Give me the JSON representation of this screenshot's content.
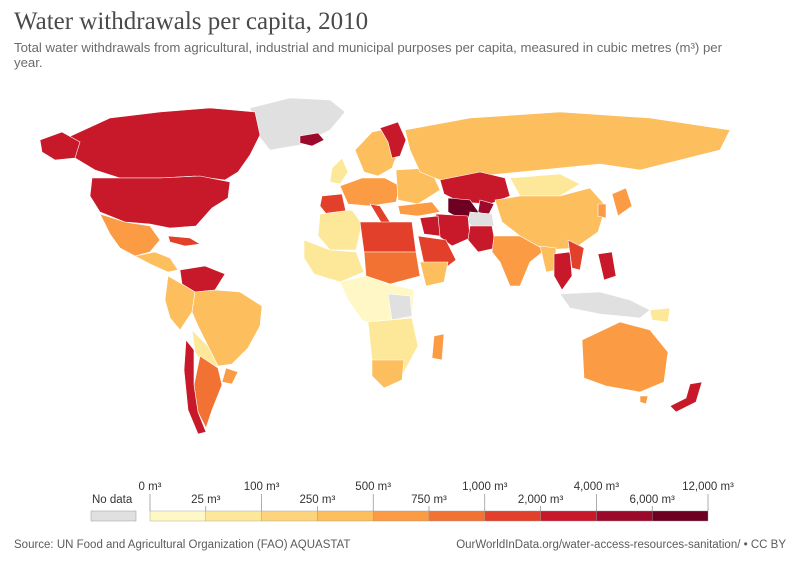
{
  "header": {
    "title": "Water withdrawals per capita, 2010",
    "subtitle": "Total water withdrawals from agricultural, industrial and municipal purposes per capita, measured in cubic metres (m³) per year."
  },
  "legend": {
    "no_data_label": "No data",
    "no_data_color": "#e0e0e0",
    "bins": [
      {
        "label_top": "0 m³",
        "label_bottom": "25 m³",
        "color": "#fff7c5"
      },
      {
        "label_top": "",
        "label_bottom": "",
        "color": "#fde89a"
      },
      {
        "label_top": "100 m³",
        "label_bottom": "250 m³",
        "color": "#fdd47c"
      },
      {
        "label_top": "",
        "label_bottom": "",
        "color": "#fdbe5d"
      },
      {
        "label_top": "500 m³",
        "label_bottom": "750 m³",
        "color": "#fb9b43"
      },
      {
        "label_top": "",
        "label_bottom": "",
        "color": "#f27234"
      },
      {
        "label_top": "1,000 m³",
        "label_bottom": "2,000 m³",
        "color": "#e2402a"
      },
      {
        "label_top": "",
        "label_bottom": "",
        "color": "#c8192a"
      },
      {
        "label_top": "4,000 m³",
        "label_bottom": "6,000 m³",
        "color": "#9c0a2b"
      },
      {
        "label_top": "",
        "label_bottom": "",
        "color": "#6e0021"
      }
    ],
    "last_label": "12,000 m³",
    "tick_labels": [
      "0 m³",
      "25 m³",
      "100 m³",
      "250 m³",
      "500 m³",
      "750 m³",
      "1,000 m³",
      "2,000 m³",
      "4,000 m³",
      "6,000 m³",
      "12,000 m³"
    ]
  },
  "footer": {
    "source": "Source: UN Food and Agricultural Organization (FAO) AQUASTAT",
    "url": "OurWorldInData.org/water-access-resources-sanitation/",
    "license": " • CC BY"
  }
}
